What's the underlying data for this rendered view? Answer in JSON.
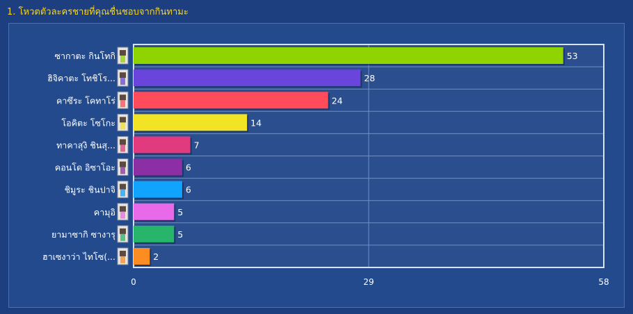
{
  "title": "1. โหวตตัวละครชายที่คุณชื่นชอบจากกินทามะ",
  "chart_data": {
    "type": "bar",
    "orientation": "horizontal",
    "categories": [
      "ซากาตะ กินโทกิ",
      "ฮิจิคาตะ โทชิโร...",
      "คาซึระ โคทาโร่",
      "โอคิตะ โซโกะ",
      "ทาคาสุงิ ชินสุ...",
      "คอนโด อิซาโอะ",
      "ชิมูระ ชินปาจิ",
      "คามุอิ",
      "ยามาซากิ ซางารุ",
      "ฮาเซงาว่า ไทโซ(..."
    ],
    "values": [
      53,
      28,
      24,
      14,
      7,
      6,
      6,
      5,
      5,
      2
    ],
    "colors": [
      "#8fd400",
      "#6a45dc",
      "#ff4b5a",
      "#f2e324",
      "#e23a7e",
      "#8c2ea4",
      "#11a4ff",
      "#e96ae8",
      "#26b56a",
      "#fd8d22"
    ],
    "xlim": [
      0,
      58
    ],
    "xticks": [
      0,
      29,
      58
    ],
    "grid": true
  }
}
